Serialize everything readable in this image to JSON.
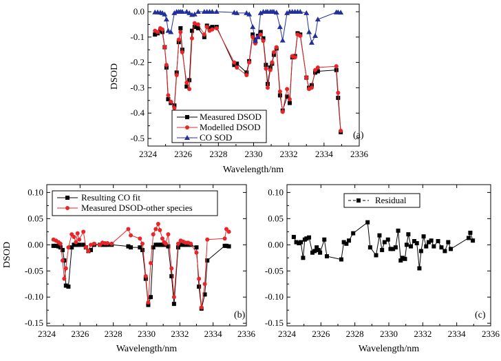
{
  "colors": {
    "black": "#000000",
    "red": "#e8262a",
    "blue": "#22309a"
  },
  "chart_data": [
    {
      "id": "a",
      "type": "line",
      "panel_label": "(a)",
      "xlabel": "Wavelength/nm",
      "ylabel": "DSOD",
      "xlim": [
        2324,
        2336
      ],
      "ylim": [
        -0.53,
        0.03
      ],
      "xticks": [
        2324,
        2326,
        2328,
        2330,
        2332,
        2334,
        2336
      ],
      "xtick_labels": [
        "2324",
        "2326",
        "2328",
        "2330",
        "2332",
        "2334",
        "2336"
      ],
      "yticks": [
        0.0,
        -0.1,
        -0.2,
        -0.3,
        -0.4,
        -0.5
      ],
      "ytick_labels": [
        "0.0",
        "-0.1",
        "-0.2",
        "-0.3",
        "-0.4",
        "-0.5"
      ],
      "legend_position": "bottom-center",
      "series": [
        {
          "name": "Measured DSOD",
          "color": "#000000",
          "marker": "square",
          "x": [
            2324.4,
            2324.55,
            2324.7,
            2324.82,
            2324.95,
            2325.05,
            2325.15,
            2325.3,
            2325.5,
            2325.63,
            2325.75,
            2325.85,
            2325.95,
            2326.2,
            2326.35,
            2326.5,
            2326.65,
            2326.85,
            2327.2,
            2327.35,
            2327.5,
            2327.65,
            2327.9,
            2328.9,
            2329.05,
            2329.6,
            2329.75,
            2329.95,
            2330.1,
            2330.25,
            2330.4,
            2330.55,
            2330.7,
            2330.8,
            2330.95,
            2331.05,
            2331.15,
            2331.3,
            2331.5,
            2331.65,
            2331.9,
            2332.05,
            2332.2,
            2332.35,
            2332.5,
            2332.65,
            2333.0,
            2333.15,
            2333.3,
            2333.5,
            2333.65,
            2334.7,
            2334.8,
            2334.95
          ],
          "y": [
            -0.09,
            -0.085,
            -0.075,
            -0.08,
            -0.14,
            -0.22,
            -0.345,
            -0.36,
            -0.37,
            -0.24,
            -0.12,
            -0.065,
            -0.15,
            -0.295,
            -0.27,
            -0.075,
            -0.06,
            -0.065,
            -0.1,
            -0.055,
            -0.065,
            -0.06,
            -0.06,
            -0.21,
            -0.205,
            -0.24,
            -0.195,
            -0.09,
            -0.11,
            -0.095,
            -0.08,
            -0.105,
            -0.21,
            -0.285,
            -0.22,
            -0.205,
            -0.17,
            -0.145,
            -0.33,
            -0.39,
            -0.335,
            -0.36,
            -0.18,
            -0.175,
            -0.085,
            -0.09,
            -0.26,
            -0.3,
            -0.29,
            -0.24,
            -0.235,
            -0.23,
            -0.34,
            -0.475
          ]
        },
        {
          "name": "Modelled DSOD",
          "color": "#e8262a",
          "marker": "circle",
          "x": [
            2324.4,
            2324.55,
            2324.7,
            2324.82,
            2324.95,
            2325.05,
            2325.15,
            2325.3,
            2325.5,
            2325.63,
            2325.75,
            2325.85,
            2325.95,
            2326.2,
            2326.35,
            2326.5,
            2326.65,
            2326.85,
            2327.2,
            2327.35,
            2327.5,
            2327.65,
            2327.9,
            2328.9,
            2329.05,
            2329.6,
            2329.75,
            2329.95,
            2330.1,
            2330.25,
            2330.4,
            2330.55,
            2330.7,
            2330.8,
            2330.95,
            2331.05,
            2331.15,
            2331.3,
            2331.5,
            2331.65,
            2331.9,
            2332.05,
            2332.2,
            2332.35,
            2332.5,
            2332.65,
            2333.0,
            2333.15,
            2333.3,
            2333.5,
            2333.65,
            2334.7,
            2334.8,
            2334.95
          ],
          "y": [
            -0.075,
            -0.08,
            -0.065,
            -0.07,
            -0.14,
            -0.21,
            -0.33,
            -0.355,
            -0.38,
            -0.25,
            -0.11,
            -0.08,
            -0.16,
            -0.28,
            -0.305,
            -0.105,
            -0.045,
            -0.05,
            -0.09,
            -0.06,
            -0.075,
            -0.07,
            -0.065,
            -0.2,
            -0.22,
            -0.25,
            -0.2,
            -0.1,
            -0.125,
            -0.1,
            -0.09,
            -0.115,
            -0.225,
            -0.3,
            -0.23,
            -0.2,
            -0.16,
            -0.14,
            -0.315,
            -0.395,
            -0.305,
            -0.345,
            -0.175,
            -0.18,
            -0.09,
            -0.095,
            -0.26,
            -0.305,
            -0.3,
            -0.23,
            -0.22,
            -0.215,
            -0.32,
            -0.47
          ]
        },
        {
          "name": "CO SOD",
          "color": "#22309a",
          "marker": "triangle",
          "x": [
            2324.4,
            2324.55,
            2324.7,
            2324.82,
            2324.95,
            2325.05,
            2325.15,
            2325.3,
            2325.5,
            2325.63,
            2325.75,
            2325.85,
            2325.95,
            2326.2,
            2326.35,
            2326.5,
            2326.65,
            2326.85,
            2327.2,
            2327.35,
            2327.5,
            2327.65,
            2327.9,
            2328.9,
            2329.05,
            2329.6,
            2329.75,
            2329.95,
            2330.1,
            2330.25,
            2330.4,
            2330.55,
            2330.7,
            2330.8,
            2330.95,
            2331.05,
            2331.15,
            2331.3,
            2331.5,
            2331.65,
            2331.9,
            2332.05,
            2332.2,
            2332.35,
            2332.5,
            2332.65,
            2333.0,
            2333.15,
            2333.3,
            2333.5,
            2333.65,
            2334.7,
            2334.8,
            2334.95
          ],
          "y": [
            -0.002,
            -0.002,
            -0.003,
            -0.005,
            -0.01,
            -0.03,
            -0.075,
            -0.08,
            -0.005,
            0.0,
            0.0,
            0.0,
            0.0,
            0.0,
            -0.005,
            -0.012,
            -0.01,
            0.0,
            0.0,
            0.0,
            0.0,
            0.0,
            0.0,
            -0.003,
            -0.005,
            -0.005,
            -0.01,
            -0.06,
            -0.115,
            -0.1,
            -0.005,
            0.0,
            0.0,
            0.0,
            0.0,
            0.0,
            0.0,
            -0.003,
            -0.06,
            -0.113,
            -0.005,
            0.0,
            0.0,
            0.0,
            0.0,
            0.0,
            -0.005,
            -0.08,
            -0.122,
            -0.095,
            -0.03,
            -0.002,
            -0.002,
            -0.003
          ]
        }
      ]
    },
    {
      "id": "b",
      "type": "line",
      "panel_label": "(b)",
      "xlabel": "Wavelength/nm",
      "ylabel": "DSOD",
      "xlim": [
        2324,
        2336
      ],
      "ylim": [
        -0.155,
        0.115
      ],
      "xticks": [
        2324,
        2326,
        2328,
        2330,
        2332,
        2334,
        2336
      ],
      "xtick_labels": [
        "2324",
        "2326",
        "2328",
        "2330",
        "2332",
        "2334",
        "2336"
      ],
      "yticks": [
        0.1,
        0.05,
        0.0,
        -0.05,
        -0.1,
        -0.15
      ],
      "ytick_labels": [
        "0.10",
        "0.05",
        "0.00",
        "-0.05",
        "-0.10",
        "-0.15"
      ],
      "legend_position": "top-center",
      "series": [
        {
          "name": "Resulting CO fit",
          "color": "#000000",
          "marker": "square",
          "x": [
            2324.4,
            2324.55,
            2324.7,
            2324.82,
            2324.95,
            2325.05,
            2325.15,
            2325.3,
            2325.5,
            2325.63,
            2325.75,
            2325.85,
            2325.95,
            2326.2,
            2326.35,
            2326.5,
            2326.65,
            2326.85,
            2327.2,
            2327.35,
            2327.5,
            2327.65,
            2327.9,
            2328.9,
            2329.05,
            2329.6,
            2329.75,
            2329.95,
            2330.1,
            2330.25,
            2330.4,
            2330.55,
            2330.7,
            2330.8,
            2330.95,
            2331.05,
            2331.15,
            2331.3,
            2331.5,
            2331.65,
            2331.9,
            2332.05,
            2332.2,
            2332.35,
            2332.5,
            2332.65,
            2333.0,
            2333.15,
            2333.3,
            2333.5,
            2333.65,
            2334.7,
            2334.8,
            2334.95
          ],
          "y": [
            -0.002,
            -0.002,
            -0.003,
            -0.005,
            -0.01,
            -0.03,
            -0.078,
            -0.08,
            -0.005,
            0.0,
            0.0,
            0.0,
            0.0,
            0.0,
            -0.005,
            -0.012,
            -0.01,
            0.0,
            0.0,
            0.0,
            0.0,
            0.0,
            0.0,
            -0.003,
            -0.005,
            -0.005,
            -0.01,
            -0.065,
            -0.115,
            -0.1,
            -0.005,
            0.0,
            0.0,
            0.0,
            0.0,
            0.0,
            0.0,
            -0.003,
            -0.06,
            -0.113,
            -0.005,
            0.0,
            0.0,
            0.0,
            0.0,
            0.0,
            -0.005,
            -0.08,
            -0.122,
            -0.095,
            -0.03,
            -0.002,
            -0.002,
            -0.003
          ]
        },
        {
          "name": "Measured DSOD-other species",
          "color": "#e8262a",
          "marker": "circle",
          "x": [
            2324.4,
            2324.55,
            2324.7,
            2324.82,
            2324.95,
            2325.05,
            2325.15,
            2325.3,
            2325.5,
            2325.63,
            2325.75,
            2325.85,
            2325.95,
            2326.2,
            2326.35,
            2326.5,
            2326.65,
            2326.85,
            2327.2,
            2327.35,
            2327.5,
            2327.65,
            2327.9,
            2328.9,
            2329.05,
            2329.6,
            2329.75,
            2329.95,
            2330.1,
            2330.25,
            2330.4,
            2330.55,
            2330.7,
            2330.8,
            2330.95,
            2331.05,
            2331.15,
            2331.3,
            2331.5,
            2331.65,
            2331.9,
            2332.05,
            2332.2,
            2332.35,
            2332.5,
            2332.65,
            2333.0,
            2333.15,
            2333.3,
            2333.5,
            2333.65,
            2334.7,
            2334.8,
            2334.95
          ],
          "y": [
            0.01,
            0.008,
            0.005,
            0.002,
            -0.03,
            -0.065,
            -0.045,
            -0.005,
            0.02,
            0.015,
            0.005,
            0.022,
            0.01,
            0.025,
            -0.005,
            -0.012,
            0.0,
            0.002,
            0.0,
            0.004,
            0.003,
            0.003,
            0.002,
            0.03,
            0.018,
            0.012,
            0.002,
            -0.06,
            -0.11,
            -0.035,
            0.02,
            0.03,
            0.04,
            0.028,
            0.012,
            0.005,
            0.002,
            0.02,
            -0.045,
            -0.1,
            0.002,
            0.008,
            0.006,
            0.004,
            0.004,
            0.002,
            -0.015,
            -0.065,
            -0.12,
            -0.075,
            0.01,
            0.012,
            0.03,
            0.025
          ]
        }
      ]
    },
    {
      "id": "c",
      "type": "line",
      "panel_label": "(c)",
      "xlabel": "Wavelength/nm",
      "ylabel": "",
      "xlim": [
        2324,
        2336
      ],
      "ylim": [
        -0.155,
        0.115
      ],
      "xticks": [
        2324,
        2326,
        2328,
        2330,
        2332,
        2334,
        2336
      ],
      "xtick_labels": [
        "2324",
        "2326",
        "2328",
        "2330",
        "2332",
        "2334",
        "2336"
      ],
      "yticks": [
        0.1,
        0.05,
        0.0,
        -0.05,
        -0.1,
        -0.15
      ],
      "ytick_labels": [
        "0.10",
        "0.05",
        "0.00",
        "-0.05",
        "-0.10",
        "-0.15"
      ],
      "legend_position": "top-center",
      "series": [
        {
          "name": "Residual",
          "color": "#000000",
          "marker": "square",
          "x": [
            2324.4,
            2324.55,
            2324.7,
            2324.82,
            2324.95,
            2325.05,
            2325.15,
            2325.3,
            2325.5,
            2325.63,
            2325.75,
            2325.85,
            2325.95,
            2326.2,
            2326.35,
            2327.2,
            2327.35,
            2327.5,
            2327.65,
            2327.9,
            2328.75,
            2328.9,
            2329.25,
            2329.45,
            2329.6,
            2329.75,
            2329.95,
            2330.1,
            2330.25,
            2330.4,
            2330.55,
            2330.7,
            2330.8,
            2330.95,
            2331.05,
            2331.15,
            2331.3,
            2331.5,
            2331.65,
            2331.8,
            2331.9,
            2332.05,
            2332.2,
            2332.35,
            2332.5,
            2332.65,
            2332.9,
            2333.1,
            2333.3,
            2333.5,
            2333.65,
            2334.7,
            2334.8,
            2334.95
          ],
          "y": [
            0.015,
            0.005,
            0.003,
            0.005,
            -0.025,
            0.01,
            0.012,
            0.014,
            -0.015,
            -0.012,
            -0.005,
            -0.01,
            -0.015,
            0.01,
            -0.022,
            -0.028,
            0.005,
            0.002,
            0.008,
            0.022,
            0.043,
            -0.005,
            -0.02,
            0.018,
            -0.01,
            0.005,
            0.01,
            -0.008,
            -0.008,
            -0.005,
            0.027,
            -0.03,
            -0.025,
            -0.027,
            0.0,
            0.02,
            -0.003,
            0.007,
            0.003,
            -0.045,
            -0.012,
            0.016,
            -0.003,
            0.005,
            0.008,
            -0.003,
            0.007,
            -0.005,
            -0.012,
            0.005,
            -0.008,
            0.013,
            0.023,
            0.008
          ]
        }
      ]
    }
  ]
}
